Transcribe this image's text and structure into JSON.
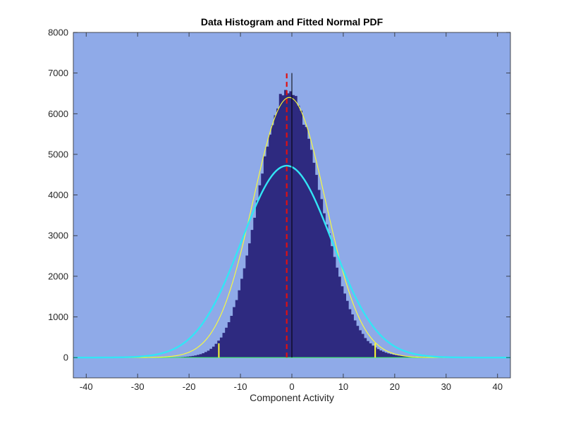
{
  "chart_data": {
    "type": "bar",
    "title": "Data Histogram and Fitted Normal PDF",
    "xlabel": "Component Activity",
    "ylabel": "",
    "xlim": [
      -42.5,
      42.5
    ],
    "ylim": [
      -500,
      8000
    ],
    "xticks": [
      -40,
      -30,
      -20,
      -10,
      0,
      10,
      20,
      30,
      40
    ],
    "yticks": [
      0,
      1000,
      2000,
      3000,
      4000,
      5000,
      6000,
      7000,
      8000
    ],
    "xtick_labels": [
      "-40",
      "-30",
      "-20",
      "-10",
      "0",
      "10",
      "20",
      "30",
      "40"
    ],
    "ytick_labels": [
      "0",
      "1000",
      "2000",
      "3000",
      "4000",
      "5000",
      "6000",
      "7000",
      "8000"
    ],
    "grid": false,
    "colors": {
      "axes_background": "#8faae8",
      "histogram": "#2e2a80",
      "narrow_fit": "#ffff33",
      "wide_fit": "#33e5f5",
      "mean_line": "#e01010",
      "zero_line": "#000000",
      "threshold_markers": "#ffff33",
      "baseline": "#40f070"
    },
    "histogram": {
      "bin_width": 0.5,
      "x_range": [
        -40,
        42
      ],
      "peak_x": -1,
      "peak_count": 6350
    },
    "series": [
      {
        "kind": "histogram",
        "x_min": -40,
        "x_max": 42,
        "bin_width": 0.5
      },
      {
        "kind": "normal_pdf",
        "mean": -0.5,
        "sd": 7.0,
        "peak": 6400
      },
      {
        "kind": "normal_pdf",
        "mean": -1.0,
        "sd": 8.8,
        "peak": 4720
      }
    ],
    "vertical_lines": [
      {
        "x": -1.0,
        "y_range": [
          0,
          7000
        ],
        "style": "dashed"
      },
      {
        "x": 0.0,
        "y_range": [
          0,
          7000
        ],
        "style": "solid"
      }
    ],
    "threshold_markers": [
      {
        "x": -14.2,
        "height": 350
      },
      {
        "x": 16.2,
        "height": 350
      }
    ]
  }
}
